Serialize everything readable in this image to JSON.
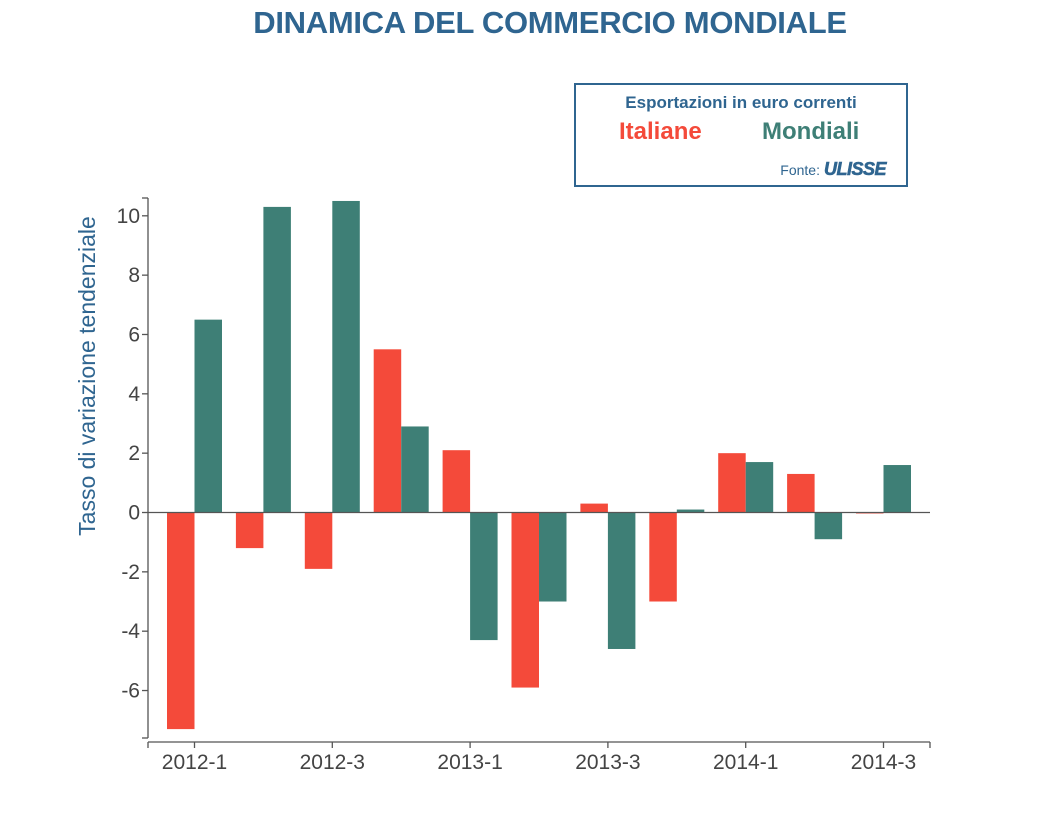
{
  "colors": {
    "title": "#2f6590",
    "italiane": "#f44a3a",
    "mondiali": "#3e7f76",
    "axis": "#555555",
    "tick_text": "#444444"
  },
  "chart_data": {
    "type": "bar",
    "title": "DINAMICA DEL COMMERCIO MONDIALE",
    "xlabel": "",
    "ylabel": "Tasso di variazione tendenziale",
    "categories": [
      "2012-1",
      "2012-2",
      "2012-3",
      "2012-4",
      "2013-1",
      "2013-2",
      "2013-3",
      "2013-4",
      "2014-1",
      "2014-2",
      "2014-3"
    ],
    "x_tick_labels": [
      "2012-1",
      "2012-3",
      "2013-1",
      "2013-3",
      "2014-1",
      "2014-3"
    ],
    "x_tick_categories": [
      "2012-1",
      "2012-3",
      "2013-1",
      "2013-3",
      "2014-1",
      "2014-3"
    ],
    "y_ticks": [
      -6,
      -4,
      -2,
      0,
      2,
      4,
      6,
      8,
      10
    ],
    "y_tick_labels": [
      "-6",
      "-4",
      "-2",
      "0",
      "2",
      "4",
      "6",
      "8",
      "10"
    ],
    "ylim": [
      -7.6,
      10.6
    ],
    "grid": false,
    "legend_position": "top-right",
    "legend_heading": "Esportazioni in euro correnti",
    "series": [
      {
        "name": "Italiane",
        "values": [
          -7.3,
          -1.2,
          -1.9,
          5.5,
          2.1,
          -5.9,
          0.3,
          -3.0,
          2.0,
          1.3,
          0.0
        ]
      },
      {
        "name": "Mondiali",
        "values": [
          6.5,
          10.3,
          10.5,
          2.9,
          -4.3,
          -3.0,
          -4.6,
          0.1,
          1.7,
          -0.9,
          1.6
        ]
      }
    ]
  },
  "legend": {
    "source_label": "Fonte:",
    "source_logo": "ULISSE"
  }
}
